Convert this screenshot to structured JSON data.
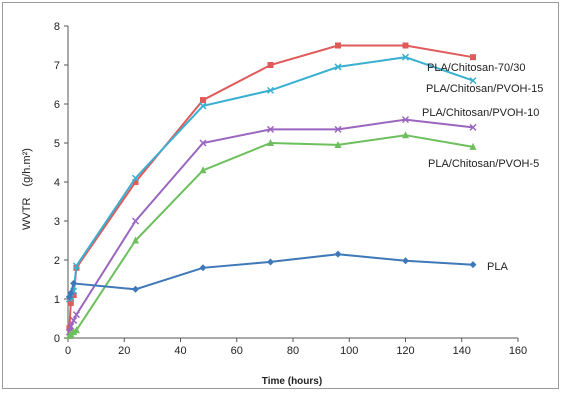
{
  "chart_data": {
    "type": "line",
    "xlabel": "Time (hours)",
    "ylabel": "WVTR",
    "ylabel_unit": "(g/h.m²)",
    "xlim": [
      0,
      160
    ],
    "ylim": [
      0,
      8
    ],
    "x_ticks": [
      0,
      20,
      40,
      60,
      80,
      100,
      120,
      140,
      160
    ],
    "y_ticks": [
      0,
      1,
      2,
      3,
      4,
      5,
      6,
      7,
      8
    ],
    "grid": false,
    "series": [
      {
        "name": "PLA/Chitosan-70/30",
        "color": "#e05a5a",
        "marker": "square",
        "points": [
          [
            0.5,
            0.25
          ],
          [
            1,
            0.9
          ],
          [
            2,
            1.1
          ],
          [
            3,
            1.8
          ],
          [
            24,
            4.0
          ],
          [
            48,
            6.1
          ],
          [
            72,
            7.0
          ],
          [
            96,
            7.5
          ],
          [
            120,
            7.5
          ],
          [
            144,
            7.2
          ]
        ]
      },
      {
        "name": "PLA/Chitosan/PVOH-15",
        "color": "#3ab0d0",
        "marker": "x",
        "points": [
          [
            0.5,
            1.0
          ],
          [
            1,
            1.05
          ],
          [
            2,
            1.2
          ],
          [
            3,
            1.85
          ],
          [
            24,
            4.1
          ],
          [
            48,
            5.95
          ],
          [
            72,
            6.35
          ],
          [
            96,
            6.95
          ],
          [
            120,
            7.2
          ],
          [
            144,
            6.6
          ]
        ]
      },
      {
        "name": "PLA/Chitosan/PVOH-10",
        "color": "#9a66c0",
        "marker": "x",
        "points": [
          [
            0.5,
            0.15
          ],
          [
            1,
            0.3
          ],
          [
            2,
            0.45
          ],
          [
            3,
            0.6
          ],
          [
            24,
            3.0
          ],
          [
            48,
            5.0
          ],
          [
            72,
            5.35
          ],
          [
            96,
            5.35
          ],
          [
            120,
            5.6
          ],
          [
            144,
            5.4
          ]
        ]
      },
      {
        "name": "PLA/Chitosan/PVOH-5",
        "color": "#6cbf5c",
        "marker": "triangle",
        "points": [
          [
            0.5,
            0.05
          ],
          [
            1,
            0.1
          ],
          [
            2,
            0.15
          ],
          [
            3,
            0.2
          ],
          [
            24,
            2.5
          ],
          [
            48,
            4.3
          ],
          [
            72,
            5.0
          ],
          [
            96,
            4.95
          ],
          [
            120,
            5.2
          ],
          [
            144,
            4.9
          ]
        ]
      },
      {
        "name": "PLA",
        "color": "#3f78b8",
        "marker": "diamond",
        "points": [
          [
            0.5,
            1.05
          ],
          [
            1,
            1.15
          ],
          [
            2,
            1.4
          ],
          [
            24,
            1.25
          ],
          [
            48,
            1.8
          ],
          [
            72,
            1.95
          ],
          [
            96,
            2.15
          ],
          [
            120,
            1.98
          ],
          [
            144,
            1.88
          ]
        ]
      }
    ]
  }
}
